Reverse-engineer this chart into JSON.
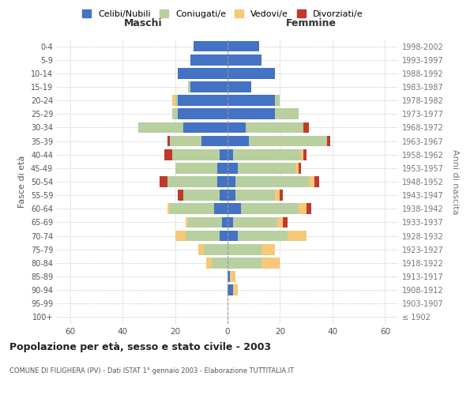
{
  "age_groups": [
    "100+",
    "95-99",
    "90-94",
    "85-89",
    "80-84",
    "75-79",
    "70-74",
    "65-69",
    "60-64",
    "55-59",
    "50-54",
    "45-49",
    "40-44",
    "35-39",
    "30-34",
    "25-29",
    "20-24",
    "15-19",
    "10-14",
    "5-9",
    "0-4"
  ],
  "birth_years": [
    "≤ 1902",
    "1903-1907",
    "1908-1912",
    "1913-1917",
    "1918-1922",
    "1923-1927",
    "1928-1932",
    "1933-1937",
    "1938-1942",
    "1943-1947",
    "1948-1952",
    "1953-1957",
    "1958-1962",
    "1963-1967",
    "1968-1972",
    "1973-1977",
    "1978-1982",
    "1983-1987",
    "1988-1992",
    "1993-1997",
    "1998-2002"
  ],
  "colors": {
    "celibi": "#4472c4",
    "coniugati": "#b8cfa0",
    "vedovi": "#f5c87a",
    "divorziati": "#c0392b"
  },
  "maschi": {
    "celibi": [
      0,
      0,
      0,
      0,
      0,
      0,
      3,
      2,
      5,
      3,
      4,
      4,
      3,
      10,
      17,
      19,
      19,
      14,
      19,
      14,
      13
    ],
    "coniugati": [
      0,
      0,
      0,
      0,
      6,
      9,
      13,
      13,
      17,
      14,
      19,
      16,
      18,
      12,
      17,
      2,
      1,
      1,
      0,
      0,
      0
    ],
    "vedovi": [
      0,
      0,
      0,
      0,
      2,
      2,
      4,
      1,
      1,
      0,
      0,
      0,
      0,
      0,
      0,
      0,
      1,
      0,
      0,
      0,
      0
    ],
    "divorziati": [
      0,
      0,
      0,
      0,
      0,
      0,
      0,
      0,
      0,
      2,
      3,
      0,
      3,
      1,
      0,
      0,
      0,
      0,
      0,
      0,
      0
    ]
  },
  "femmine": {
    "celibi": [
      0,
      0,
      2,
      1,
      0,
      0,
      4,
      2,
      5,
      3,
      3,
      4,
      2,
      8,
      7,
      18,
      18,
      9,
      18,
      13,
      12
    ],
    "coniugati": [
      0,
      0,
      0,
      0,
      13,
      13,
      19,
      17,
      22,
      15,
      28,
      22,
      26,
      30,
      22,
      9,
      2,
      0,
      0,
      0,
      0
    ],
    "vedovi": [
      0,
      0,
      2,
      2,
      7,
      5,
      7,
      2,
      3,
      2,
      2,
      1,
      1,
      0,
      0,
      0,
      0,
      0,
      0,
      0,
      0
    ],
    "divorziati": [
      0,
      0,
      0,
      0,
      0,
      0,
      0,
      2,
      2,
      1,
      2,
      1,
      1,
      1,
      2,
      0,
      0,
      0,
      0,
      0,
      0
    ]
  },
  "title": "Popolazione per età, sesso e stato civile - 2003",
  "subtitle": "COMUNE DI FILIGHERA (PV) - Dati ISTAT 1° gennaio 2003 - Elaborazione TUTTITALIA.IT",
  "xlabel_left": "Maschi",
  "xlabel_right": "Femmine",
  "ylabel_left": "Fasce di età",
  "ylabel_right": "Anni di nascita",
  "xlim": 65,
  "legend_labels": [
    "Celibi/Nubili",
    "Coniugati/e",
    "Vedovi/e",
    "Divorziati/e"
  ],
  "background_color": "#ffffff",
  "grid_color": "#cccccc"
}
